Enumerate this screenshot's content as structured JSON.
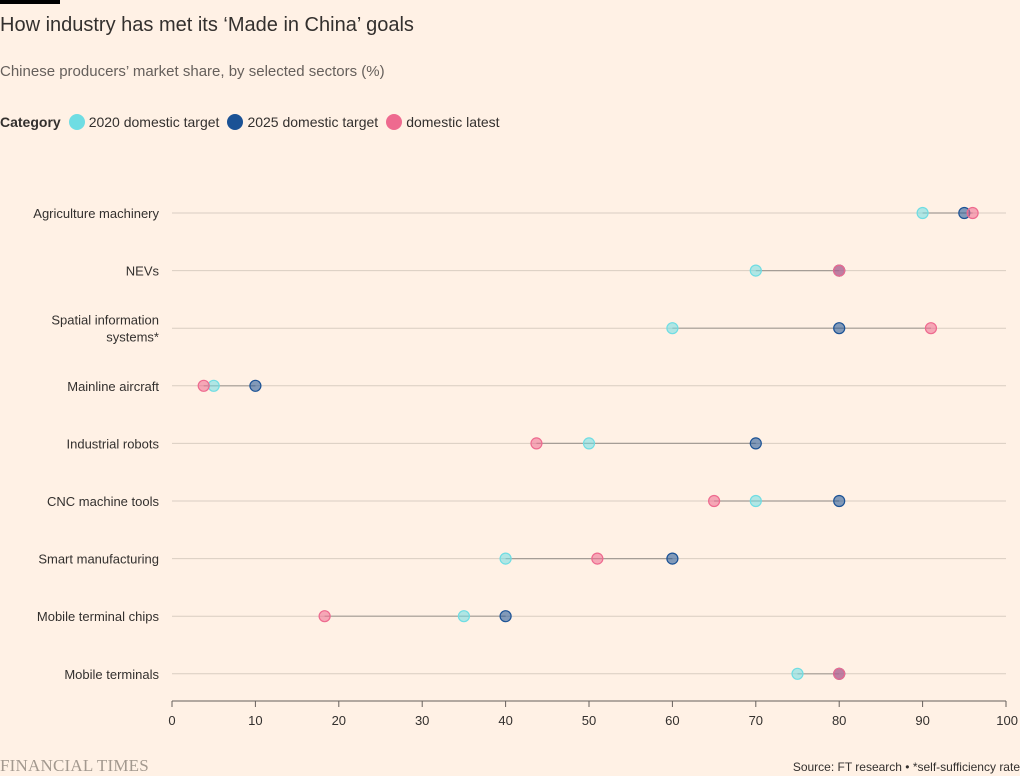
{
  "title": "How industry has met its ‘Made in China’ goals",
  "subtitle": "Chinese producers’ market share, by selected sectors (%)",
  "legend": {
    "title": "Category",
    "items": [
      {
        "label": "2020 domestic target",
        "color": "#6fdde3"
      },
      {
        "label": "2025 domestic target",
        "color": "#1b5295"
      },
      {
        "label": "domestic latest",
        "color": "#ee6a8f"
      }
    ]
  },
  "footer": {
    "brand": "FINANCIAL TIMES",
    "source": "Source: FT research • *self-sufficiency rate"
  },
  "chart_data": {
    "type": "dot-plot",
    "x_axis": {
      "min": 0,
      "max": 100,
      "ticks": [
        0,
        10,
        20,
        30,
        40,
        50,
        60,
        70,
        80,
        90,
        100
      ]
    },
    "series": [
      {
        "name": "2020 domestic target",
        "color": "#6fdde3"
      },
      {
        "name": "2025 domestic target",
        "color": "#1b5295"
      },
      {
        "name": "domestic latest",
        "color": "#ee6a8f"
      }
    ],
    "categories": [
      {
        "label": [
          "Agriculture machinery"
        ],
        "values": [
          90,
          95,
          96
        ]
      },
      {
        "label": [
          "NEVs"
        ],
        "values": [
          70,
          80,
          80
        ]
      },
      {
        "label": [
          "Spatial information",
          "systems*"
        ],
        "values": [
          60,
          80,
          91
        ]
      },
      {
        "label": [
          "Mainline aircraft"
        ],
        "values": [
          5,
          10,
          3.8
        ]
      },
      {
        "label": [
          "Industrial robots"
        ],
        "values": [
          50,
          70,
          43.7
        ]
      },
      {
        "label": [
          "CNC machine tools"
        ],
        "values": [
          70,
          80,
          65
        ]
      },
      {
        "label": [
          "Smart manufacturing"
        ],
        "values": [
          40,
          60,
          51
        ]
      },
      {
        "label": [
          "Mobile terminal chips"
        ],
        "values": [
          35,
          40,
          18.3
        ]
      },
      {
        "label": [
          "Mobile terminals"
        ],
        "values": [
          75,
          80,
          80
        ]
      }
    ]
  }
}
